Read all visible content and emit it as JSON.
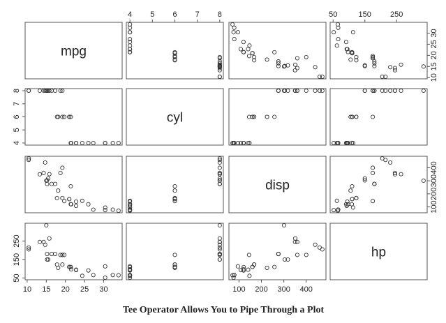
{
  "chart_data": {
    "type": "scatter-matrix",
    "title": "Tee Operator Allows You to Pipe Through a Plot",
    "variables": [
      "mpg",
      "cyl",
      "disp",
      "hp"
    ],
    "ranges": {
      "mpg": [
        10.4,
        33.9
      ],
      "cyl": [
        4,
        8
      ],
      "disp": [
        71.1,
        472
      ],
      "hp": [
        52,
        335
      ]
    },
    "ticks": {
      "mpg": {
        "values": [
          10,
          15,
          20,
          25,
          30
        ],
        "side": "bottom-right"
      },
      "cyl": {
        "values": [
          4,
          5,
          6,
          7,
          8
        ],
        "side": "top-left"
      },
      "disp": {
        "values": [
          100,
          200,
          300,
          400
        ],
        "side": "bottom-right"
      },
      "hp": {
        "values": [
          50,
          150,
          250
        ],
        "side": "top-left"
      }
    },
    "data": {
      "mpg": [
        21.0,
        21.0,
        22.8,
        21.4,
        18.7,
        18.1,
        14.3,
        24.4,
        22.8,
        19.2,
        17.8,
        16.4,
        17.3,
        15.2,
        10.4,
        10.4,
        14.7,
        32.4,
        30.4,
        33.9,
        21.5,
        15.5,
        15.2,
        13.3,
        19.2,
        27.3,
        26.0,
        30.4,
        15.8,
        19.7,
        15.0,
        21.4
      ],
      "cyl": [
        6,
        6,
        4,
        6,
        8,
        6,
        8,
        4,
        4,
        6,
        6,
        8,
        8,
        8,
        8,
        8,
        8,
        4,
        4,
        4,
        4,
        8,
        8,
        8,
        8,
        4,
        4,
        4,
        8,
        6,
        8,
        4
      ],
      "disp": [
        160,
        160,
        108,
        258,
        360,
        225,
        360,
        146.7,
        140.8,
        167.6,
        167.6,
        275.8,
        275.8,
        275.8,
        472,
        460,
        440,
        78.7,
        75.7,
        71.1,
        120.1,
        318,
        304,
        350,
        400,
        79,
        120.3,
        95.1,
        351,
        145,
        301,
        121
      ],
      "hp": [
        110,
        110,
        93,
        110,
        175,
        105,
        245,
        62,
        95,
        123,
        123,
        180,
        180,
        180,
        205,
        215,
        230,
        66,
        52,
        65,
        97,
        150,
        150,
        245,
        175,
        66,
        91,
        113,
        264,
        175,
        335,
        109
      ]
    }
  }
}
